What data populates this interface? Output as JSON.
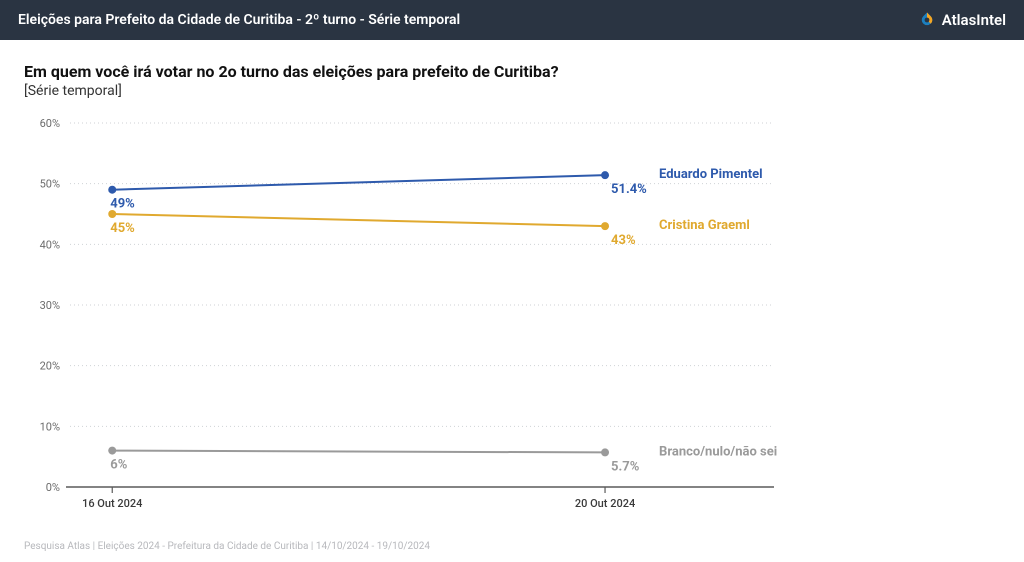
{
  "header": {
    "title": "Eleições para Prefeito da Cidade de Curitiba - 2º turno - Série temporal",
    "brand_text": "AtlasIntel",
    "bg_color": "#2a3442",
    "text_color": "#ffffff",
    "brand_icon_colors": {
      "outer": "#1c7fbf",
      "inner": "#f5a623"
    }
  },
  "question": "Em quem você irá votar no 2o turno das eleições para prefeito de Curitiba?",
  "subtitle": "[Série temporal]",
  "footnote": "Pesquisa Atlas  |  Eleições 2024 - Prefeitura da Cidade de Curitiba  |  14/10/2024 - 19/10/2024",
  "chart": {
    "type": "line",
    "background_color": "#ffffff",
    "grid_color": "#cfd2d6",
    "axis_color": "#5a5a5a",
    "ylim": [
      0,
      60
    ],
    "ytick_step": 10,
    "ytick_suffix": "%",
    "x_categories": [
      "16 Out 2024",
      "20 Out 2024"
    ],
    "line_width": 2,
    "marker_radius": 4,
    "label_fontsize": 13,
    "axis_fontsize": 11,
    "series": [
      {
        "name": "Eduardo Pimentel",
        "color": "#2e5aac",
        "values": [
          49,
          51.4
        ],
        "point_labels": [
          "49%",
          "51.4%"
        ],
        "first_label_pos": "below",
        "last_label_pos": "below"
      },
      {
        "name": "Cristina Graeml",
        "color": "#e0a92f",
        "values": [
          45,
          43
        ],
        "point_labels": [
          "45%",
          "43%"
        ],
        "first_label_pos": "below",
        "last_label_pos": "below"
      },
      {
        "name": "Branco/nulo/não sei",
        "color": "#9a9a9a",
        "values": [
          6,
          5.7
        ],
        "point_labels": [
          "6%",
          "5.7%"
        ],
        "first_label_pos": "below",
        "last_label_pos": "below"
      }
    ]
  }
}
